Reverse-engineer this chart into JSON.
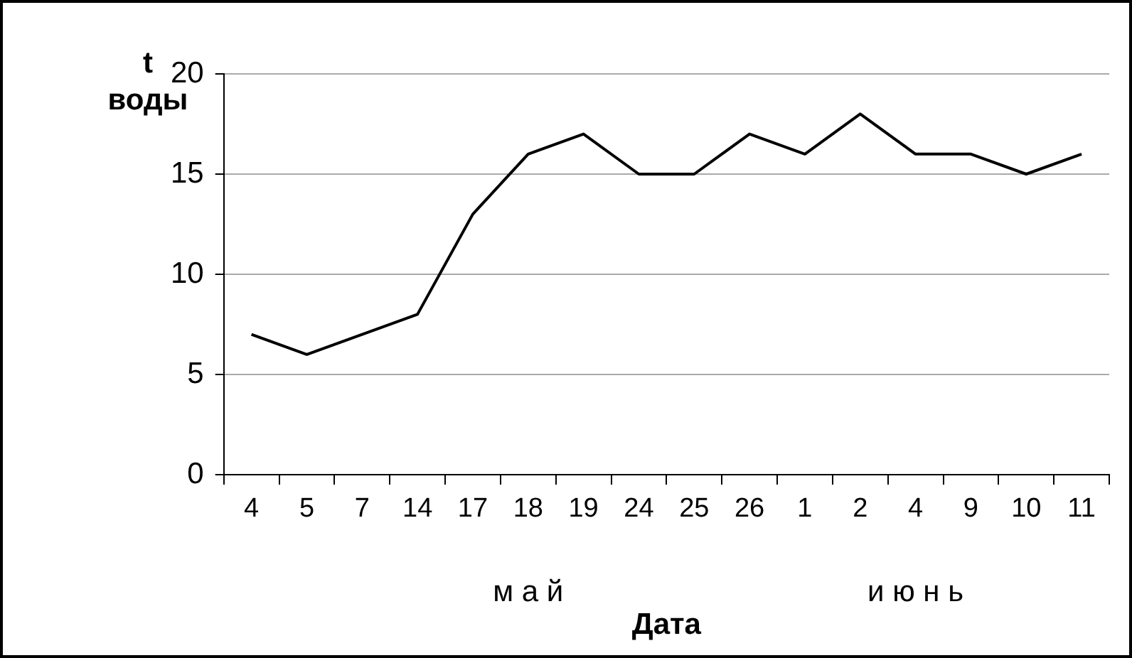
{
  "chart_data": {
    "type": "line",
    "xlabel": "Дата",
    "ylabel": "t воды",
    "categories": [
      "4",
      "5",
      "7",
      "14",
      "17",
      "18",
      "19",
      "24",
      "25",
      "26",
      "1",
      "2",
      "4",
      "9",
      "10",
      "11"
    ],
    "series": [
      {
        "color": "#000000",
        "values": [
          7,
          6,
          7,
          8,
          13,
          16,
          17,
          15,
          15,
          17,
          16,
          18,
          16,
          16,
          15,
          16
        ]
      }
    ],
    "ylim": [
      0,
      20
    ],
    "yticks": [
      0,
      5,
      10,
      15,
      20
    ],
    "grid": "y",
    "marker": "none",
    "line_style": "solid",
    "legend": false,
    "annotations": [
      "м а й",
      "и ю н ь"
    ]
  }
}
